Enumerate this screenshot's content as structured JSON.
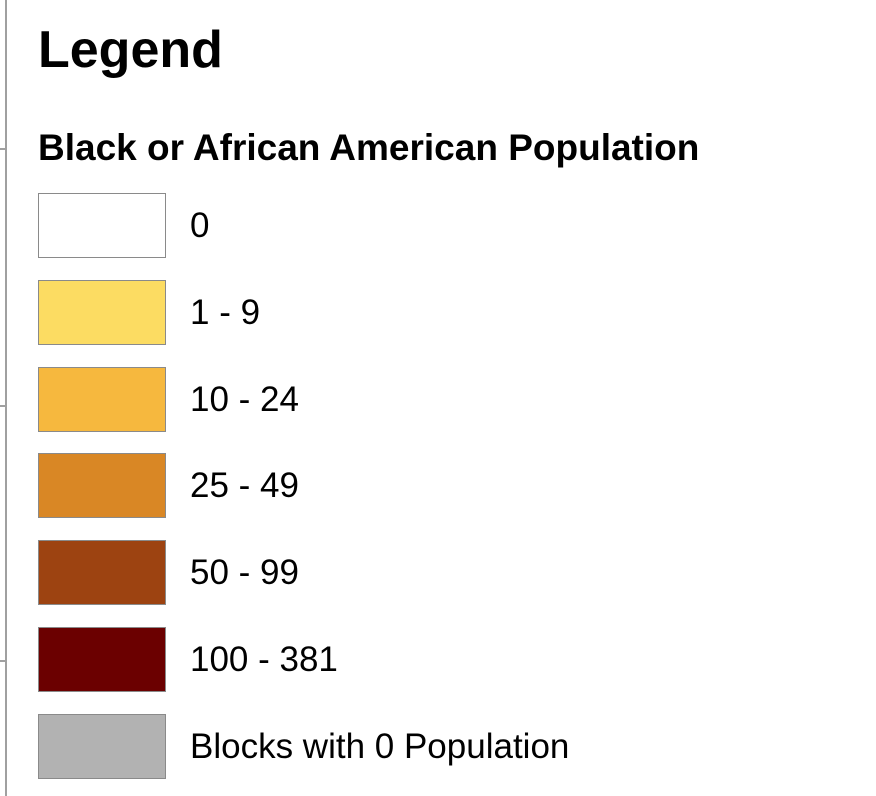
{
  "legend": {
    "title": "Legend",
    "layer": "Black or African American Population",
    "items": [
      {
        "label": "0",
        "color": "#ffffff"
      },
      {
        "label": "1 - 9",
        "color": "#fcdc62"
      },
      {
        "label": "10 - 24",
        "color": "#f6b83e"
      },
      {
        "label": "25 - 49",
        "color": "#d98725"
      },
      {
        "label": "50 - 99",
        "color": "#9d4311"
      },
      {
        "label": "100 - 381",
        "color": "#6b0000"
      },
      {
        "label": "Blocks with 0 Population",
        "color": "#b2b2b2"
      }
    ]
  }
}
